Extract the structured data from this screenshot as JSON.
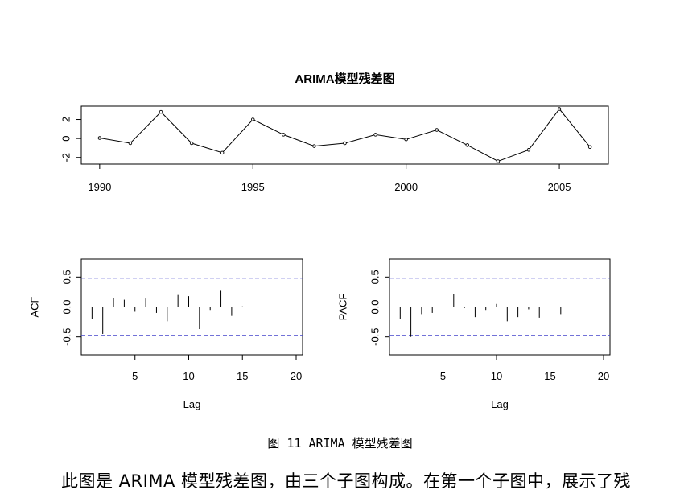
{
  "chart_data": [
    {
      "type": "line",
      "title": "ARIMA模型残差图",
      "x": [
        1990,
        1991,
        1992,
        1993,
        1994,
        1995,
        1996,
        1997,
        1998,
        1999,
        2000,
        2001,
        2002,
        2003,
        2004,
        2005,
        2006
      ],
      "values": [
        0.05,
        -0.5,
        2.8,
        -0.5,
        -1.5,
        2.0,
        0.4,
        -0.8,
        -0.5,
        0.4,
        -0.1,
        0.9,
        -0.7,
        -2.4,
        -1.2,
        3.1,
        -0.9
      ],
      "xlim": [
        1989.4,
        2006.6
      ],
      "ylim": [
        -2.7,
        3.4
      ],
      "xticks": [
        "1990",
        "1995",
        "2000",
        "2005"
      ],
      "yticks": [
        "-2",
        "0",
        "2"
      ],
      "xlabel": "",
      "ylabel": ""
    },
    {
      "type": "bar",
      "xlabel": "Lag",
      "ylabel": "ACF",
      "lags": [
        1,
        2,
        3,
        4,
        5,
        6,
        7,
        8,
        9,
        10,
        11,
        12,
        13,
        14,
        15
      ],
      "values": [
        -0.2,
        -0.45,
        0.15,
        0.12,
        -0.08,
        0.14,
        -0.1,
        -0.24,
        0.2,
        0.18,
        -0.37,
        -0.05,
        0.27,
        -0.15,
        0.01
      ],
      "conf_bound": 0.48,
      "xlim": [
        0,
        20.6
      ],
      "ylim": [
        -0.8,
        0.8
      ],
      "xticks": [
        "5",
        "10",
        "15",
        "20"
      ],
      "yticks": [
        "-0.5",
        "0.0",
        "0.5"
      ]
    },
    {
      "type": "bar",
      "xlabel": "Lag",
      "ylabel": "PACF",
      "lags": [
        1,
        2,
        3,
        4,
        5,
        6,
        7,
        8,
        9,
        10,
        11,
        12,
        13,
        14,
        15,
        16
      ],
      "values": [
        -0.2,
        -0.5,
        -0.12,
        -0.1,
        -0.05,
        0.22,
        -0.02,
        -0.17,
        -0.05,
        0.05,
        -0.24,
        -0.17,
        -0.04,
        -0.18,
        0.1,
        -0.12
      ],
      "conf_bound": 0.48,
      "xlim": [
        0,
        20.6
      ],
      "ylim": [
        -0.8,
        0.8
      ],
      "xticks": [
        "5",
        "10",
        "15",
        "20"
      ],
      "yticks": [
        "-0.5",
        "0.0",
        "0.5"
      ]
    }
  ],
  "colors": {
    "conf_line": "#4444cc",
    "axis": "#000000"
  },
  "caption": "图 11 ARIMA 模型残差图",
  "body_text": "此图是 ARIMA 模型残差图，由三个子图构成。在第一个子图中，展示了残"
}
